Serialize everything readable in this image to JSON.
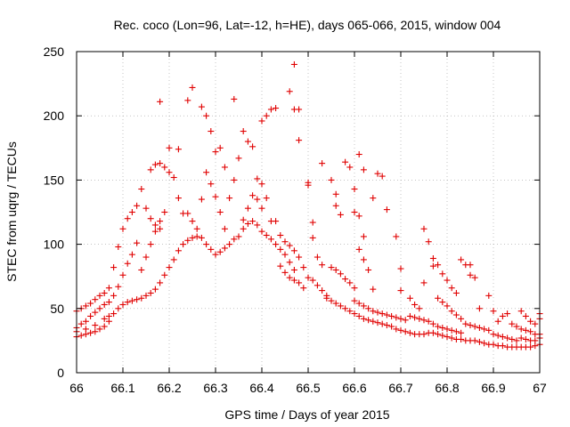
{
  "chart_data": {
    "type": "scatter",
    "title": "Rec. coco (Lon=96, Lat=-12, h=HE), days 065-066, 2015, window 004",
    "xlabel": "GPS time / Days of year 2015",
    "ylabel": "STEC from uqrg / TECUs",
    "xlim": [
      66,
      67
    ],
    "ylim": [
      0,
      250
    ],
    "xticks": [
      "66",
      "66.1",
      "66.2",
      "66.3",
      "66.4",
      "66.5",
      "66.6",
      "66.7",
      "66.8",
      "66.9",
      "67"
    ],
    "yticks": [
      "0",
      "50",
      "100",
      "150",
      "200",
      "250"
    ],
    "grid": true,
    "marker": "+",
    "marker_color": "#e00000",
    "points": [
      [
        66.0,
        48
      ],
      [
        66.01,
        50
      ],
      [
        66.02,
        52
      ],
      [
        66.03,
        54
      ],
      [
        66.04,
        57
      ],
      [
        66.05,
        60
      ],
      [
        66.06,
        62
      ],
      [
        66.07,
        66
      ],
      [
        66.0,
        35
      ],
      [
        66.01,
        38
      ],
      [
        66.02,
        40
      ],
      [
        66.03,
        44
      ],
      [
        66.04,
        47
      ],
      [
        66.05,
        50
      ],
      [
        66.06,
        53
      ],
      [
        66.07,
        55
      ],
      [
        66.0,
        28
      ],
      [
        66.01,
        29
      ],
      [
        66.02,
        30
      ],
      [
        66.03,
        31
      ],
      [
        66.04,
        32
      ],
      [
        66.05,
        34
      ],
      [
        66.06,
        36
      ],
      [
        66.07,
        40
      ],
      [
        66.0,
        32
      ],
      [
        66.02,
        34
      ],
      [
        66.04,
        37
      ],
      [
        66.06,
        42
      ],
      [
        66.07,
        44
      ],
      [
        66.08,
        82
      ],
      [
        66.09,
        98
      ],
      [
        66.1,
        112
      ],
      [
        66.11,
        120
      ],
      [
        66.12,
        125
      ],
      [
        66.13,
        130
      ],
      [
        66.08,
        60
      ],
      [
        66.09,
        67
      ],
      [
        66.1,
        76
      ],
      [
        66.11,
        85
      ],
      [
        66.12,
        92
      ],
      [
        66.13,
        101
      ],
      [
        66.08,
        46
      ],
      [
        66.09,
        50
      ],
      [
        66.1,
        53
      ],
      [
        66.11,
        55
      ],
      [
        66.12,
        56
      ],
      [
        66.13,
        57
      ],
      [
        66.14,
        143
      ],
      [
        66.15,
        128
      ],
      [
        66.16,
        120
      ],
      [
        66.17,
        115
      ],
      [
        66.18,
        112
      ],
      [
        66.16,
        158
      ],
      [
        66.17,
        162
      ],
      [
        66.18,
        163
      ],
      [
        66.19,
        160
      ],
      [
        66.2,
        156
      ],
      [
        66.21,
        152
      ],
      [
        66.18,
        211
      ],
      [
        66.2,
        175
      ],
      [
        66.22,
        174
      ],
      [
        66.24,
        212
      ],
      [
        66.25,
        222
      ],
      [
        66.27,
        207
      ],
      [
        66.28,
        200
      ],
      [
        66.29,
        188
      ],
      [
        66.3,
        172
      ],
      [
        66.31,
        175
      ],
      [
        66.32,
        160
      ],
      [
        66.14,
        80
      ],
      [
        66.15,
        90
      ],
      [
        66.16,
        100
      ],
      [
        66.17,
        110
      ],
      [
        66.18,
        118
      ],
      [
        66.19,
        125
      ],
      [
        66.14,
        58
      ],
      [
        66.15,
        60
      ],
      [
        66.16,
        62
      ],
      [
        66.17,
        65
      ],
      [
        66.18,
        70
      ],
      [
        66.19,
        76
      ],
      [
        66.2,
        82
      ],
      [
        66.21,
        88
      ],
      [
        66.22,
        95
      ],
      [
        66.23,
        100
      ],
      [
        66.24,
        103
      ],
      [
        66.25,
        105
      ],
      [
        66.26,
        106
      ],
      [
        66.27,
        105
      ],
      [
        66.28,
        100
      ],
      [
        66.29,
        96
      ],
      [
        66.3,
        92
      ],
      [
        66.31,
        94
      ],
      [
        66.32,
        97
      ],
      [
        66.33,
        100
      ],
      [
        66.34,
        104
      ],
      [
        66.22,
        136
      ],
      [
        66.23,
        124
      ],
      [
        66.24,
        124
      ],
      [
        66.25,
        118
      ],
      [
        66.26,
        112
      ],
      [
        66.27,
        135
      ],
      [
        66.28,
        156
      ],
      [
        66.29,
        147
      ],
      [
        66.3,
        137
      ],
      [
        66.31,
        125
      ],
      [
        66.32,
        112
      ],
      [
        66.33,
        136
      ],
      [
        66.34,
        150
      ],
      [
        66.35,
        167
      ],
      [
        66.36,
        188
      ],
      [
        66.37,
        180
      ],
      [
        66.38,
        176
      ],
      [
        66.39,
        151
      ],
      [
        66.34,
        213
      ],
      [
        66.36,
        119
      ],
      [
        66.37,
        128
      ],
      [
        66.38,
        138
      ],
      [
        66.39,
        135
      ],
      [
        66.4,
        128
      ],
      [
        66.35,
        106
      ],
      [
        66.36,
        112
      ],
      [
        66.37,
        116
      ],
      [
        66.38,
        118
      ],
      [
        66.39,
        115
      ],
      [
        66.4,
        110
      ],
      [
        66.4,
        196
      ],
      [
        66.41,
        200
      ],
      [
        66.42,
        205
      ],
      [
        66.43,
        206
      ],
      [
        66.46,
        219
      ],
      [
        66.47,
        240
      ],
      [
        66.48,
        181
      ],
      [
        66.48,
        205
      ],
      [
        66.47,
        205
      ],
      [
        66.4,
        147
      ],
      [
        66.41,
        136
      ],
      [
        66.42,
        118
      ],
      [
        66.41,
        107
      ],
      [
        66.42,
        104
      ],
      [
        66.43,
        100
      ],
      [
        66.44,
        96
      ],
      [
        66.45,
        92
      ],
      [
        66.46,
        86
      ],
      [
        66.47,
        80
      ],
      [
        66.43,
        118
      ],
      [
        66.44,
        107
      ],
      [
        66.45,
        102
      ],
      [
        66.46,
        99
      ],
      [
        66.47,
        95
      ],
      [
        66.48,
        90
      ],
      [
        66.44,
        83
      ],
      [
        66.45,
        78
      ],
      [
        66.46,
        74
      ],
      [
        66.47,
        72
      ],
      [
        66.48,
        70
      ],
      [
        66.49,
        66
      ],
      [
        66.49,
        82
      ],
      [
        66.5,
        74
      ],
      [
        66.51,
        72
      ],
      [
        66.52,
        68
      ],
      [
        66.53,
        64
      ],
      [
        66.54,
        60
      ],
      [
        66.5,
        148
      ],
      [
        66.5,
        146
      ],
      [
        66.51,
        117
      ],
      [
        66.51,
        105
      ],
      [
        66.52,
        90
      ],
      [
        66.53,
        84
      ],
      [
        66.53,
        163
      ],
      [
        66.55,
        150
      ],
      [
        66.56,
        139
      ],
      [
        66.56,
        130
      ],
      [
        66.57,
        123
      ],
      [
        66.58,
        164
      ],
      [
        66.59,
        160
      ],
      [
        66.6,
        143
      ],
      [
        66.61,
        170
      ],
      [
        66.62,
        158
      ],
      [
        66.6,
        125
      ],
      [
        66.61,
        122
      ],
      [
        66.62,
        106
      ],
      [
        66.61,
        96
      ],
      [
        66.62,
        88
      ],
      [
        66.63,
        80
      ],
      [
        66.64,
        65
      ],
      [
        66.65,
        155
      ],
      [
        66.66,
        153
      ],
      [
        66.64,
        136
      ],
      [
        66.67,
        127
      ],
      [
        66.69,
        106
      ],
      [
        66.7,
        81
      ],
      [
        66.7,
        64
      ],
      [
        66.54,
        58
      ],
      [
        66.55,
        56
      ],
      [
        66.56,
        54
      ],
      [
        66.57,
        52
      ],
      [
        66.58,
        50
      ],
      [
        66.59,
        48
      ],
      [
        66.6,
        46
      ],
      [
        66.61,
        44
      ],
      [
        66.62,
        42
      ],
      [
        66.63,
        41
      ],
      [
        66.64,
        40
      ],
      [
        66.65,
        39
      ],
      [
        66.55,
        82
      ],
      [
        66.56,
        80
      ],
      [
        66.57,
        77
      ],
      [
        66.58,
        73
      ],
      [
        66.59,
        70
      ],
      [
        66.6,
        66
      ],
      [
        66.6,
        56
      ],
      [
        66.61,
        54
      ],
      [
        66.62,
        52
      ],
      [
        66.63,
        50
      ],
      [
        66.64,
        48
      ],
      [
        66.65,
        47
      ],
      [
        66.66,
        46
      ],
      [
        66.67,
        45
      ],
      [
        66.68,
        44
      ],
      [
        66.69,
        43
      ],
      [
        66.7,
        42
      ],
      [
        66.71,
        41
      ],
      [
        66.66,
        38
      ],
      [
        66.67,
        37
      ],
      [
        66.68,
        36
      ],
      [
        66.69,
        34
      ],
      [
        66.7,
        33
      ],
      [
        66.71,
        32
      ],
      [
        66.72,
        31
      ],
      [
        66.73,
        30
      ],
      [
        66.74,
        30
      ],
      [
        66.75,
        30
      ],
      [
        66.76,
        31
      ],
      [
        66.77,
        31
      ],
      [
        66.72,
        58
      ],
      [
        66.73,
        53
      ],
      [
        66.74,
        50
      ],
      [
        66.75,
        112
      ],
      [
        66.76,
        102
      ],
      [
        66.77,
        89
      ],
      [
        66.75,
        70
      ],
      [
        66.77,
        83
      ],
      [
        66.78,
        84
      ],
      [
        66.79,
        77
      ],
      [
        66.8,
        72
      ],
      [
        66.81,
        66
      ],
      [
        66.82,
        62
      ],
      [
        66.83,
        88
      ],
      [
        66.84,
        84
      ],
      [
        66.85,
        84
      ],
      [
        66.85,
        76
      ],
      [
        66.86,
        74
      ],
      [
        66.78,
        58
      ],
      [
        66.79,
        55
      ],
      [
        66.8,
        52
      ],
      [
        66.81,
        48
      ],
      [
        66.82,
        45
      ],
      [
        66.83,
        42
      ],
      [
        66.72,
        44
      ],
      [
        66.73,
        43
      ],
      [
        66.74,
        42
      ],
      [
        66.75,
        41
      ],
      [
        66.76,
        40
      ],
      [
        66.77,
        38
      ],
      [
        66.78,
        36
      ],
      [
        66.79,
        35
      ],
      [
        66.8,
        34
      ],
      [
        66.81,
        33
      ],
      [
        66.82,
        32
      ],
      [
        66.83,
        31
      ],
      [
        66.78,
        30
      ],
      [
        66.79,
        29
      ],
      [
        66.8,
        28
      ],
      [
        66.81,
        27
      ],
      [
        66.82,
        26
      ],
      [
        66.83,
        26
      ],
      [
        66.84,
        25
      ],
      [
        66.85,
        25
      ],
      [
        66.86,
        25
      ],
      [
        66.87,
        24
      ],
      [
        66.88,
        23
      ],
      [
        66.89,
        22
      ],
      [
        66.84,
        38
      ],
      [
        66.85,
        37
      ],
      [
        66.86,
        36
      ],
      [
        66.87,
        35
      ],
      [
        66.88,
        34
      ],
      [
        66.89,
        33
      ],
      [
        66.87,
        50
      ],
      [
        66.89,
        60
      ],
      [
        66.9,
        48
      ],
      [
        66.91,
        40
      ],
      [
        66.92,
        44
      ],
      [
        66.93,
        46
      ],
      [
        66.9,
        30
      ],
      [
        66.91,
        29
      ],
      [
        66.92,
        28
      ],
      [
        66.93,
        27
      ],
      [
        66.94,
        26
      ],
      [
        66.95,
        25
      ],
      [
        66.9,
        22
      ],
      [
        66.91,
        21
      ],
      [
        66.92,
        21
      ],
      [
        66.93,
        20
      ],
      [
        66.94,
        20
      ],
      [
        66.95,
        20
      ],
      [
        66.96,
        20
      ],
      [
        66.97,
        20
      ],
      [
        66.98,
        20
      ],
      [
        66.99,
        21
      ],
      [
        67.0,
        22
      ],
      [
        66.94,
        38
      ],
      [
        66.95,
        36
      ],
      [
        66.96,
        34
      ],
      [
        66.97,
        33
      ],
      [
        66.98,
        32
      ],
      [
        66.99,
        30
      ],
      [
        66.96,
        48
      ],
      [
        66.97,
        44
      ],
      [
        66.98,
        40
      ],
      [
        66.99,
        38
      ],
      [
        67.0,
        46
      ],
      [
        67.0,
        42
      ],
      [
        66.96,
        27
      ],
      [
        66.97,
        26
      ],
      [
        66.98,
        25
      ],
      [
        66.99,
        25
      ],
      [
        67.0,
        27
      ],
      [
        67.0,
        30
      ]
    ]
  }
}
